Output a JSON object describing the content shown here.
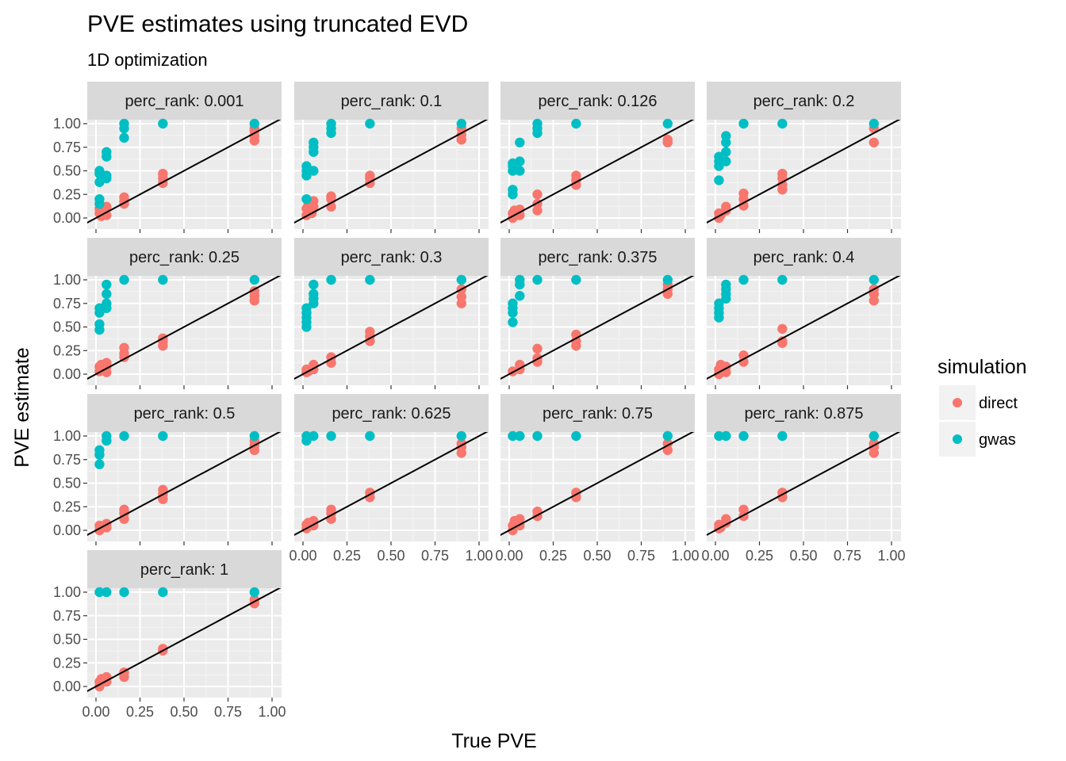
{
  "chart_data": {
    "type": "scatter",
    "title": "PVE estimates using truncated EVD",
    "subtitle": "1D optimization",
    "xlabel": "True PVE",
    "ylabel": "PVE estimate",
    "xlim": [
      0,
      1
    ],
    "ylim": [
      0,
      1
    ],
    "x_ticks": [
      "0.00",
      "0.25",
      "0.50",
      "0.75",
      "1.00"
    ],
    "y_ticks": [
      "0.00",
      "0.25",
      "0.50",
      "0.75",
      "1.00"
    ],
    "reference_line": "y = x",
    "facet_label_prefix": "perc_rank: ",
    "legend": {
      "title": "simulation",
      "position": "right",
      "entries": [
        {
          "name": "direct",
          "color": "#F8766D"
        },
        {
          "name": "gwas",
          "color": "#00BFC4"
        }
      ]
    },
    "panels": [
      {
        "label": "0.001",
        "direct": [
          [
            0.02,
            0.05
          ],
          [
            0.02,
            0.1
          ],
          [
            0.03,
            0.02
          ],
          [
            0.05,
            0.08
          ],
          [
            0.06,
            0.12
          ],
          [
            0.06,
            0.03
          ],
          [
            0.16,
            0.15
          ],
          [
            0.16,
            0.22
          ],
          [
            0.16,
            0.18
          ],
          [
            0.38,
            0.37
          ],
          [
            0.38,
            0.42
          ],
          [
            0.38,
            0.47
          ],
          [
            0.9,
            0.82
          ],
          [
            0.9,
            0.87
          ],
          [
            0.9,
            0.92
          ],
          [
            0.9,
            0.95
          ]
        ],
        "gwas": [
          [
            0.02,
            0.2
          ],
          [
            0.02,
            0.38
          ],
          [
            0.02,
            0.5
          ],
          [
            0.02,
            0.47
          ],
          [
            0.02,
            0.15
          ],
          [
            0.06,
            0.45
          ],
          [
            0.06,
            0.65
          ],
          [
            0.06,
            0.7
          ],
          [
            0.06,
            0.42
          ],
          [
            0.16,
            0.85
          ],
          [
            0.16,
            0.95
          ],
          [
            0.16,
            1.0
          ],
          [
            0.38,
            1.0
          ],
          [
            0.9,
            1.0
          ]
        ]
      },
      {
        "label": "0.1",
        "direct": [
          [
            0.02,
            0.03
          ],
          [
            0.02,
            0.1
          ],
          [
            0.03,
            0.15
          ],
          [
            0.05,
            0.05
          ],
          [
            0.06,
            0.12
          ],
          [
            0.06,
            0.18
          ],
          [
            0.16,
            0.12
          ],
          [
            0.16,
            0.2
          ],
          [
            0.16,
            0.23
          ],
          [
            0.38,
            0.37
          ],
          [
            0.38,
            0.42
          ],
          [
            0.38,
            0.45
          ],
          [
            0.9,
            0.83
          ],
          [
            0.9,
            0.88
          ],
          [
            0.9,
            0.95
          ]
        ],
        "gwas": [
          [
            0.02,
            0.2
          ],
          [
            0.02,
            0.5
          ],
          [
            0.02,
            0.55
          ],
          [
            0.02,
            0.45
          ],
          [
            0.06,
            0.5
          ],
          [
            0.06,
            0.7
          ],
          [
            0.06,
            0.75
          ],
          [
            0.06,
            0.8
          ],
          [
            0.16,
            0.9
          ],
          [
            0.16,
            0.95
          ],
          [
            0.16,
            1.0
          ],
          [
            0.38,
            1.0
          ],
          [
            0.9,
            1.0
          ]
        ]
      },
      {
        "label": "0.126",
        "direct": [
          [
            0.02,
            0.0
          ],
          [
            0.02,
            0.05
          ],
          [
            0.03,
            0.08
          ],
          [
            0.06,
            0.03
          ],
          [
            0.06,
            0.09
          ],
          [
            0.16,
            0.08
          ],
          [
            0.16,
            0.15
          ],
          [
            0.16,
            0.25
          ],
          [
            0.38,
            0.35
          ],
          [
            0.38,
            0.4
          ],
          [
            0.38,
            0.45
          ],
          [
            0.9,
            0.8
          ],
          [
            0.9,
            0.83
          ]
        ],
        "gwas": [
          [
            0.02,
            0.25
          ],
          [
            0.02,
            0.3
          ],
          [
            0.02,
            0.5
          ],
          [
            0.02,
            0.55
          ],
          [
            0.02,
            0.58
          ],
          [
            0.06,
            0.5
          ],
          [
            0.06,
            0.6
          ],
          [
            0.06,
            0.8
          ],
          [
            0.16,
            0.9
          ],
          [
            0.16,
            0.95
          ],
          [
            0.16,
            1.0
          ],
          [
            0.38,
            1.0
          ],
          [
            0.9,
            1.0
          ]
        ]
      },
      {
        "label": "0.2",
        "direct": [
          [
            0.02,
            0.0
          ],
          [
            0.02,
            0.05
          ],
          [
            0.03,
            0.03
          ],
          [
            0.06,
            0.08
          ],
          [
            0.06,
            0.12
          ],
          [
            0.16,
            0.13
          ],
          [
            0.16,
            0.2
          ],
          [
            0.16,
            0.26
          ],
          [
            0.38,
            0.3
          ],
          [
            0.38,
            0.35
          ],
          [
            0.38,
            0.42
          ],
          [
            0.38,
            0.47
          ],
          [
            0.9,
            0.8
          ],
          [
            0.9,
            0.95
          ]
        ],
        "gwas": [
          [
            0.02,
            0.4
          ],
          [
            0.02,
            0.55
          ],
          [
            0.02,
            0.6
          ],
          [
            0.02,
            0.65
          ],
          [
            0.06,
            0.6
          ],
          [
            0.06,
            0.7
          ],
          [
            0.06,
            0.8
          ],
          [
            0.06,
            0.87
          ],
          [
            0.16,
            1.0
          ],
          [
            0.38,
            1.0
          ],
          [
            0.9,
            1.0
          ]
        ]
      },
      {
        "label": "0.25",
        "direct": [
          [
            0.02,
            0.03
          ],
          [
            0.02,
            0.08
          ],
          [
            0.03,
            0.1
          ],
          [
            0.06,
            0.02
          ],
          [
            0.06,
            0.08
          ],
          [
            0.06,
            0.12
          ],
          [
            0.16,
            0.18
          ],
          [
            0.16,
            0.22
          ],
          [
            0.16,
            0.28
          ],
          [
            0.38,
            0.3
          ],
          [
            0.38,
            0.35
          ],
          [
            0.38,
            0.38
          ],
          [
            0.9,
            0.78
          ],
          [
            0.9,
            0.83
          ],
          [
            0.9,
            0.88
          ]
        ],
        "gwas": [
          [
            0.02,
            0.47
          ],
          [
            0.02,
            0.53
          ],
          [
            0.02,
            0.65
          ],
          [
            0.02,
            0.7
          ],
          [
            0.06,
            0.7
          ],
          [
            0.06,
            0.75
          ],
          [
            0.06,
            0.85
          ],
          [
            0.06,
            0.95
          ],
          [
            0.16,
            1.0
          ],
          [
            0.38,
            1.0
          ],
          [
            0.9,
            1.0
          ]
        ]
      },
      {
        "label": "0.3",
        "direct": [
          [
            0.02,
            0.02
          ],
          [
            0.02,
            0.05
          ],
          [
            0.03,
            0.03
          ],
          [
            0.06,
            0.05
          ],
          [
            0.06,
            0.1
          ],
          [
            0.16,
            0.12
          ],
          [
            0.16,
            0.18
          ],
          [
            0.38,
            0.35
          ],
          [
            0.38,
            0.4
          ],
          [
            0.38,
            0.45
          ],
          [
            0.9,
            0.75
          ],
          [
            0.9,
            0.82
          ],
          [
            0.9,
            0.9
          ]
        ],
        "gwas": [
          [
            0.02,
            0.5
          ],
          [
            0.02,
            0.55
          ],
          [
            0.02,
            0.6
          ],
          [
            0.02,
            0.65
          ],
          [
            0.02,
            0.7
          ],
          [
            0.06,
            0.75
          ],
          [
            0.06,
            0.8
          ],
          [
            0.06,
            0.85
          ],
          [
            0.06,
            0.95
          ],
          [
            0.16,
            1.0
          ],
          [
            0.38,
            1.0
          ],
          [
            0.9,
            1.0
          ]
        ]
      },
      {
        "label": "0.375",
        "direct": [
          [
            0.02,
            0.03
          ],
          [
            0.06,
            0.05
          ],
          [
            0.06,
            0.1
          ],
          [
            0.16,
            0.13
          ],
          [
            0.16,
            0.17
          ],
          [
            0.16,
            0.27
          ],
          [
            0.38,
            0.3
          ],
          [
            0.38,
            0.35
          ],
          [
            0.38,
            0.42
          ],
          [
            0.9,
            0.85
          ],
          [
            0.9,
            0.9
          ],
          [
            0.9,
            0.95
          ]
        ],
        "gwas": [
          [
            0.02,
            0.55
          ],
          [
            0.02,
            0.65
          ],
          [
            0.02,
            0.7
          ],
          [
            0.02,
            0.75
          ],
          [
            0.06,
            0.83
          ],
          [
            0.06,
            0.95
          ],
          [
            0.06,
            1.0
          ],
          [
            0.16,
            1.0
          ],
          [
            0.38,
            1.0
          ],
          [
            0.9,
            1.0
          ]
        ]
      },
      {
        "label": "0.4",
        "direct": [
          [
            0.02,
            0.0
          ],
          [
            0.02,
            0.05
          ],
          [
            0.03,
            0.1
          ],
          [
            0.06,
            0.02
          ],
          [
            0.06,
            0.08
          ],
          [
            0.16,
            0.13
          ],
          [
            0.16,
            0.2
          ],
          [
            0.38,
            0.33
          ],
          [
            0.38,
            0.35
          ],
          [
            0.38,
            0.48
          ],
          [
            0.9,
            0.78
          ],
          [
            0.9,
            0.85
          ],
          [
            0.9,
            0.9
          ]
        ],
        "gwas": [
          [
            0.02,
            0.6
          ],
          [
            0.02,
            0.65
          ],
          [
            0.02,
            0.7
          ],
          [
            0.02,
            0.75
          ],
          [
            0.06,
            0.8
          ],
          [
            0.06,
            0.85
          ],
          [
            0.06,
            0.9
          ],
          [
            0.06,
            0.95
          ],
          [
            0.16,
            1.0
          ],
          [
            0.38,
            1.0
          ],
          [
            0.9,
            1.0
          ]
        ]
      },
      {
        "label": "0.5",
        "direct": [
          [
            0.02,
            0.0
          ],
          [
            0.02,
            0.05
          ],
          [
            0.06,
            0.03
          ],
          [
            0.06,
            0.07
          ],
          [
            0.16,
            0.12
          ],
          [
            0.16,
            0.18
          ],
          [
            0.16,
            0.22
          ],
          [
            0.38,
            0.33
          ],
          [
            0.38,
            0.38
          ],
          [
            0.38,
            0.43
          ],
          [
            0.9,
            0.85
          ],
          [
            0.9,
            0.9
          ],
          [
            0.9,
            0.95
          ]
        ],
        "gwas": [
          [
            0.02,
            0.7
          ],
          [
            0.02,
            0.8
          ],
          [
            0.02,
            0.85
          ],
          [
            0.06,
            0.95
          ],
          [
            0.06,
            1.0
          ],
          [
            0.16,
            1.0
          ],
          [
            0.38,
            1.0
          ],
          [
            0.9,
            1.0
          ]
        ]
      },
      {
        "label": "0.625",
        "direct": [
          [
            0.02,
            0.02
          ],
          [
            0.02,
            0.06
          ],
          [
            0.03,
            0.08
          ],
          [
            0.06,
            0.05
          ],
          [
            0.06,
            0.1
          ],
          [
            0.16,
            0.12
          ],
          [
            0.16,
            0.18
          ],
          [
            0.16,
            0.22
          ],
          [
            0.38,
            0.35
          ],
          [
            0.38,
            0.4
          ],
          [
            0.9,
            0.82
          ],
          [
            0.9,
            0.88
          ],
          [
            0.9,
            0.92
          ]
        ],
        "gwas": [
          [
            0.02,
            0.95
          ],
          [
            0.02,
            1.0
          ],
          [
            0.06,
            1.0
          ],
          [
            0.16,
            1.0
          ],
          [
            0.38,
            1.0
          ],
          [
            0.9,
            1.0
          ]
        ]
      },
      {
        "label": "0.75",
        "direct": [
          [
            0.02,
            0.0
          ],
          [
            0.02,
            0.05
          ],
          [
            0.03,
            0.1
          ],
          [
            0.06,
            0.05
          ],
          [
            0.06,
            0.12
          ],
          [
            0.16,
            0.15
          ],
          [
            0.16,
            0.2
          ],
          [
            0.38,
            0.35
          ],
          [
            0.38,
            0.4
          ],
          [
            0.9,
            0.85
          ],
          [
            0.9,
            0.92
          ]
        ],
        "gwas": [
          [
            0.02,
            1.0
          ],
          [
            0.06,
            1.0
          ],
          [
            0.16,
            1.0
          ],
          [
            0.38,
            1.0
          ],
          [
            0.9,
            1.0
          ]
        ]
      },
      {
        "label": "0.875",
        "direct": [
          [
            0.02,
            0.02
          ],
          [
            0.02,
            0.06
          ],
          [
            0.03,
            0.03
          ],
          [
            0.06,
            0.08
          ],
          [
            0.06,
            0.12
          ],
          [
            0.16,
            0.15
          ],
          [
            0.16,
            0.22
          ],
          [
            0.38,
            0.35
          ],
          [
            0.38,
            0.4
          ],
          [
            0.9,
            0.82
          ],
          [
            0.9,
            0.88
          ],
          [
            0.9,
            0.92
          ]
        ],
        "gwas": [
          [
            0.02,
            1.0
          ],
          [
            0.06,
            1.0
          ],
          [
            0.16,
            1.0
          ],
          [
            0.38,
            1.0
          ],
          [
            0.9,
            1.0
          ]
        ]
      },
      {
        "label": "1",
        "direct": [
          [
            0.02,
            0.0
          ],
          [
            0.02,
            0.05
          ],
          [
            0.03,
            0.08
          ],
          [
            0.06,
            0.05
          ],
          [
            0.06,
            0.1
          ],
          [
            0.16,
            0.1
          ],
          [
            0.16,
            0.15
          ],
          [
            0.38,
            0.38
          ],
          [
            0.38,
            0.4
          ],
          [
            0.9,
            0.88
          ],
          [
            0.9,
            0.92
          ]
        ],
        "gwas": [
          [
            0.02,
            1.0
          ],
          [
            0.06,
            1.0
          ],
          [
            0.16,
            1.0
          ],
          [
            0.38,
            1.0
          ],
          [
            0.9,
            1.0
          ]
        ]
      }
    ]
  }
}
